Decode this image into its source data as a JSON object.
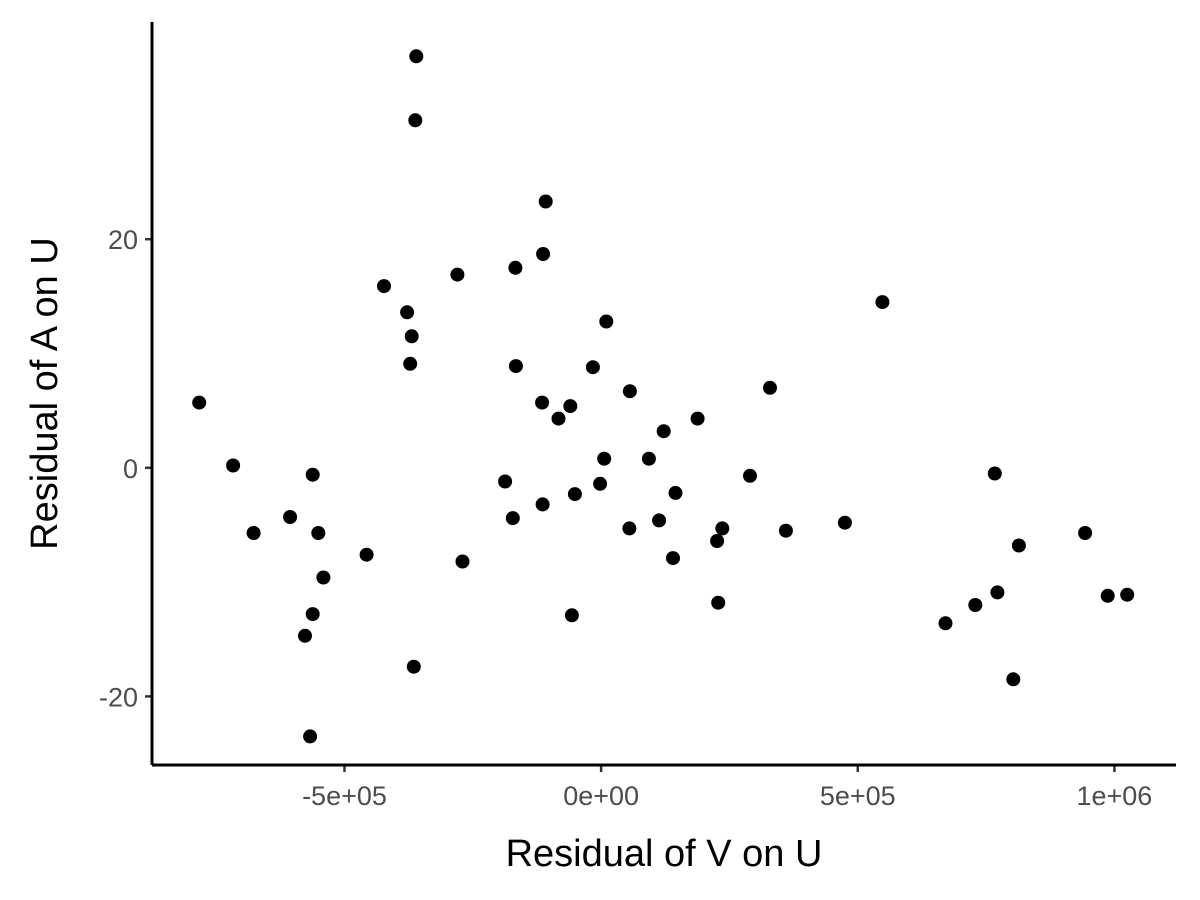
{
  "chart_data": {
    "type": "scatter",
    "title": "",
    "xlabel": "Residual of V on U",
    "ylabel": "Residual of A on U",
    "xlim": [
      -875000,
      1120000
    ],
    "ylim": [
      -26,
      39
    ],
    "xticks": [
      {
        "value": -500000,
        "label": "-5e+05"
      },
      {
        "value": 0,
        "label": "0e+00"
      },
      {
        "value": 500000,
        "label": "5e+05"
      },
      {
        "value": 1000000,
        "label": "1e+06"
      }
    ],
    "yticks": [
      {
        "value": -20,
        "label": "-20"
      },
      {
        "value": 0,
        "label": "0"
      },
      {
        "value": 20,
        "label": "20"
      }
    ],
    "grid": false,
    "legend": "none",
    "point_color": "#000000",
    "points": [
      {
        "x": -360000,
        "y": 36.0
      },
      {
        "x": -362000,
        "y": 30.4
      },
      {
        "x": -108000,
        "y": 23.3
      },
      {
        "x": -113000,
        "y": 18.7
      },
      {
        "x": -167000,
        "y": 17.5
      },
      {
        "x": -280000,
        "y": 16.9
      },
      {
        "x": -423000,
        "y": 15.9
      },
      {
        "x": -378000,
        "y": 13.6
      },
      {
        "x": -369000,
        "y": 11.5
      },
      {
        "x": -372000,
        "y": 9.1
      },
      {
        "x": 10000,
        "y": 12.8
      },
      {
        "x": -166000,
        "y": 8.9
      },
      {
        "x": -16000,
        "y": 8.8
      },
      {
        "x": 56000,
        "y": 6.7
      },
      {
        "x": 329000,
        "y": 7.0
      },
      {
        "x": 548000,
        "y": 14.5
      },
      {
        "x": -115000,
        "y": 5.7
      },
      {
        "x": -60000,
        "y": 5.4
      },
      {
        "x": -83000,
        "y": 4.3
      },
      {
        "x": 188000,
        "y": 4.3
      },
      {
        "x": 122000,
        "y": 3.2
      },
      {
        "x": -783000,
        "y": 5.7
      },
      {
        "x": -717000,
        "y": 0.2
      },
      {
        "x": 6000,
        "y": 0.8
      },
      {
        "x": 93000,
        "y": 0.8
      },
      {
        "x": -562000,
        "y": -0.6
      },
      {
        "x": 290000,
        "y": -0.7
      },
      {
        "x": 767000,
        "y": -0.5
      },
      {
        "x": -187000,
        "y": -1.2
      },
      {
        "x": -2000,
        "y": -1.4
      },
      {
        "x": -51000,
        "y": -2.3
      },
      {
        "x": 145000,
        "y": -2.2
      },
      {
        "x": -114000,
        "y": -3.2
      },
      {
        "x": -172000,
        "y": -4.4
      },
      {
        "x": -606000,
        "y": -4.3
      },
      {
        "x": -677000,
        "y": -5.7
      },
      {
        "x": -551000,
        "y": -5.7
      },
      {
        "x": 55000,
        "y": -5.3
      },
      {
        "x": 113000,
        "y": -4.6
      },
      {
        "x": 475000,
        "y": -4.8
      },
      {
        "x": 360000,
        "y": -5.5
      },
      {
        "x": 236000,
        "y": -5.3
      },
      {
        "x": 226000,
        "y": -6.4
      },
      {
        "x": 943000,
        "y": -5.7
      },
      {
        "x": 814000,
        "y": -6.8
      },
      {
        "x": -457000,
        "y": -7.6
      },
      {
        "x": -270000,
        "y": -8.2
      },
      {
        "x": 140000,
        "y": -7.9
      },
      {
        "x": -541000,
        "y": -9.6
      },
      {
        "x": -562000,
        "y": -12.8
      },
      {
        "x": 228000,
        "y": -11.8
      },
      {
        "x": -57000,
        "y": -12.9
      },
      {
        "x": 772000,
        "y": -10.9
      },
      {
        "x": 729000,
        "y": -12.0
      },
      {
        "x": 987000,
        "y": -11.2
      },
      {
        "x": 1025000,
        "y": -11.1
      },
      {
        "x": -577000,
        "y": -14.7
      },
      {
        "x": 671000,
        "y": -13.6
      },
      {
        "x": -365000,
        "y": -17.4
      },
      {
        "x": 803000,
        "y": -18.5
      },
      {
        "x": -567000,
        "y": -23.5
      }
    ]
  }
}
